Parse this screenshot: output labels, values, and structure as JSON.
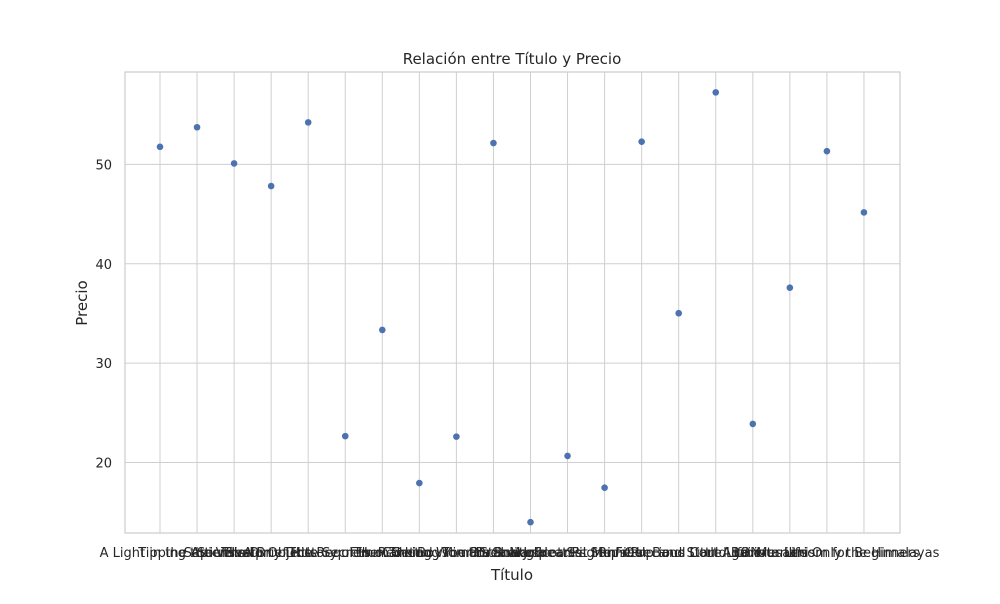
{
  "chart_data": {
    "type": "scatter",
    "title": "Relación entre Título y Precio",
    "xlabel": "Título",
    "ylabel": "Precio",
    "ylim": [
      12.9,
      59.3
    ],
    "yticks": [
      20,
      30,
      40,
      50
    ],
    "grid": true,
    "categories": [
      "A Light in the Attic",
      "Tipping the Velvet",
      "Soumission",
      "Sharp Objects",
      "Sapiens: A Brief History of Humankind",
      "The Requiem Red",
      "The Dirty Little Secrets of Getting Your Dream Job",
      "The Coming Woman",
      "The Boys in the Boat",
      "The Black Maria",
      "Starving Hearts",
      "Shakespeare's Sonnets",
      "Set Me Free",
      "Scott Pilgrim's Precious Little Life",
      "Rip it Up and Start Again",
      "Our Band Could Be Your Life",
      "Olio",
      "Mesaerion",
      "Libertarianism for Beginners",
      "It's Only the Himalayas"
    ],
    "series": [
      {
        "values": [
          51.77,
          53.74,
          50.1,
          47.82,
          54.23,
          22.65,
          33.34,
          17.93,
          22.6,
          52.15,
          13.99,
          20.66,
          17.46,
          52.29,
          35.02,
          57.25,
          23.88,
          37.59,
          51.33,
          45.17
        ]
      }
    ],
    "colors": {
      "points": "#4c72b0",
      "grid": "#cfcfcf",
      "frame": "#cccccc"
    }
  }
}
